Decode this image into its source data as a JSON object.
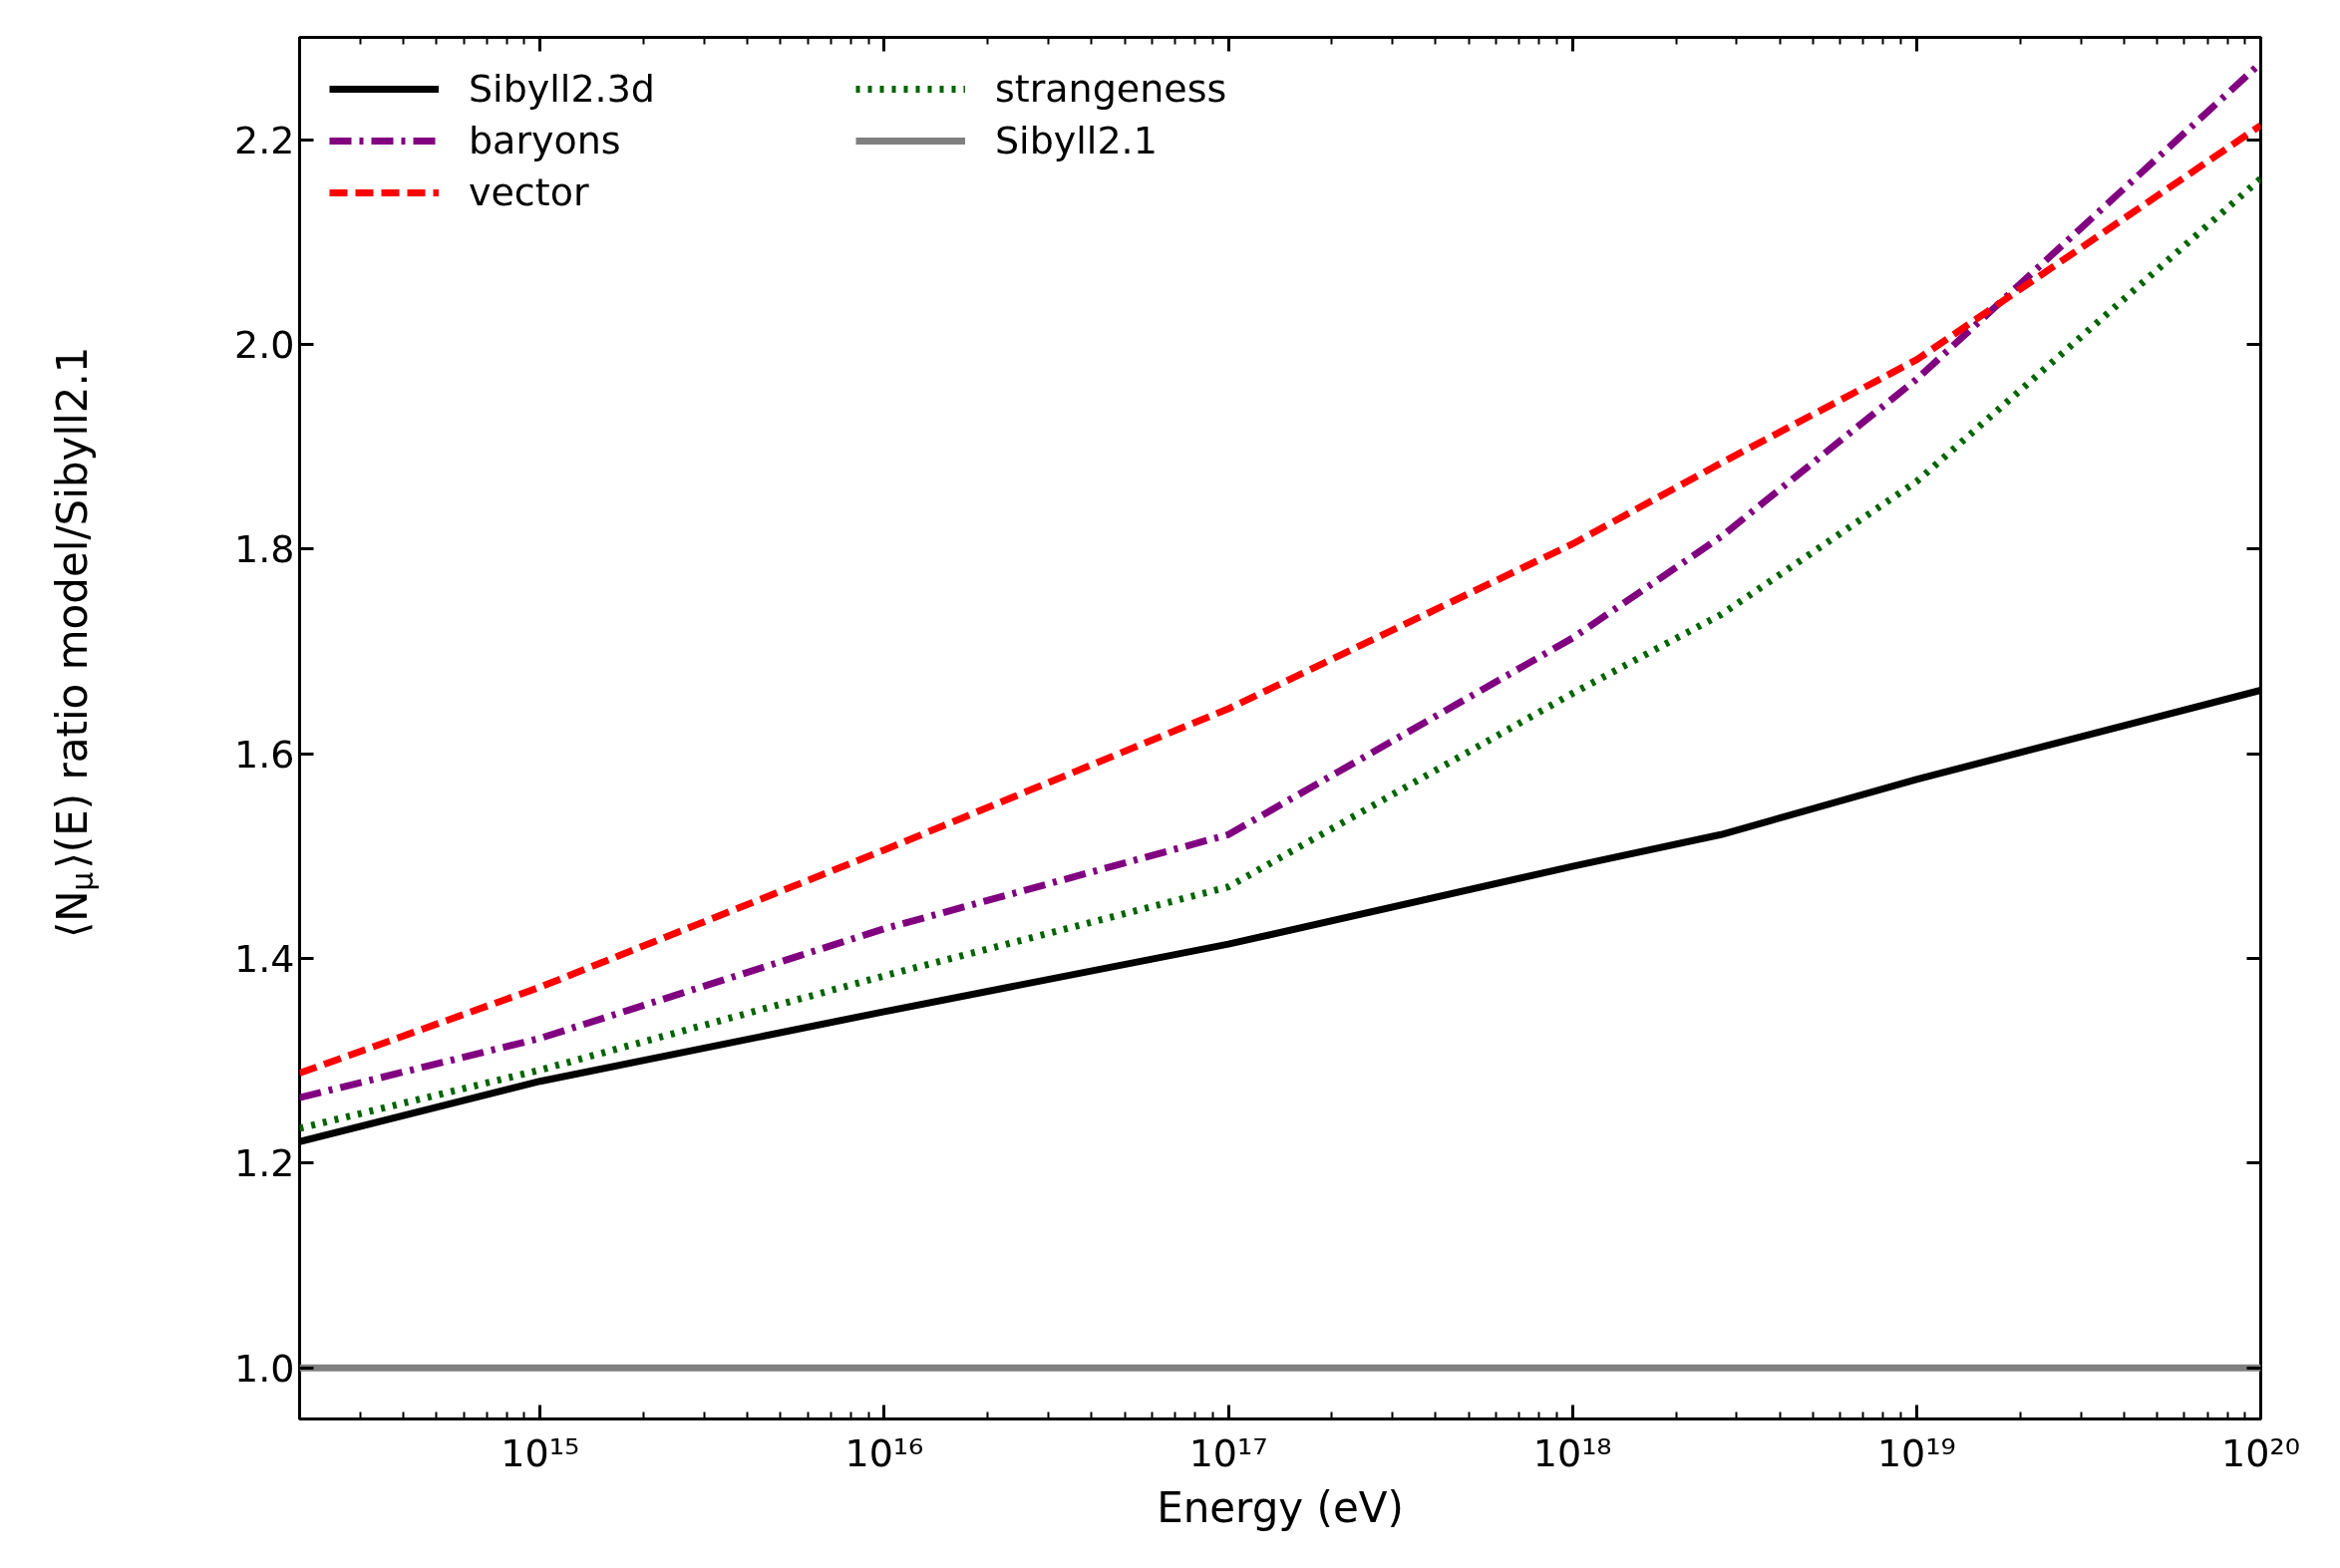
{
  "chart_data": {
    "type": "line",
    "xlabel": "Energy (eV)",
    "ylabel": "⟨N$_{μ}$⟩(E) ratio model/Sibyll2.1",
    "log": "x",
    "grid": false,
    "legend": "top left",
    "marker": "none",
    "xlim": [
      200000000000000.0,
      1e+20
    ],
    "ylim": [
      0.95,
      2.3
    ],
    "xticks": [
      {
        "value": 1000000000000000.0,
        "label": "10¹⁵"
      },
      {
        "value": 1e+16,
        "label": "10¹⁶"
      },
      {
        "value": 1e+17,
        "label": "10¹⁷"
      },
      {
        "value": 1e+18,
        "label": "10¹⁸"
      },
      {
        "value": 1e+19,
        "label": "10¹⁹"
      },
      {
        "value": 1e+20,
        "label": "10²⁰"
      }
    ],
    "yticks": [
      {
        "value": 1.0,
        "label": "1.0"
      },
      {
        "value": 1.2,
        "label": "1.2"
      },
      {
        "value": 1.4,
        "label": "1.4"
      },
      {
        "value": 1.6,
        "label": "1.6"
      },
      {
        "value": 1.8,
        "label": "1.8"
      },
      {
        "value": 2.0,
        "label": "2.0"
      },
      {
        "value": 2.2,
        "label": "2.2"
      }
    ],
    "x": [
      200000000000000.0,
      1000000000000000.0,
      1e+16,
      1e+17,
      1e+18,
      2.7e+18,
      1e+19,
      1e+20
    ],
    "series": [
      {
        "name": "Sibyll2.3d",
        "color": "#000000",
        "line_style": "solid",
        "values": [
          1.221,
          1.28,
          1.348,
          1.414,
          1.49,
          1.521,
          1.575,
          1.662
        ]
      },
      {
        "name": "baryons",
        "color": "#800080",
        "line_style": "dashdot",
        "values": [
          1.264,
          1.322,
          1.429,
          1.521,
          1.713,
          1.812,
          1.966,
          2.275
        ]
      },
      {
        "name": "vector",
        "color": "#ff0000",
        "line_style": "dashed",
        "values": [
          1.288,
          1.372,
          1.506,
          1.644,
          1.805,
          1.884,
          1.985,
          2.214
        ]
      },
      {
        "name": "strangeness",
        "color": "#006400",
        "line_style": "dotted",
        "values": [
          1.234,
          1.291,
          1.383,
          1.47,
          1.659,
          1.736,
          1.866,
          2.162
        ]
      },
      {
        "name": "Sibyll2.1",
        "color": "#808080",
        "line_style": "solid",
        "values": [
          1.0,
          1.0,
          1.0,
          1.0,
          1.0,
          1.0,
          1.0,
          1.0
        ]
      }
    ]
  }
}
